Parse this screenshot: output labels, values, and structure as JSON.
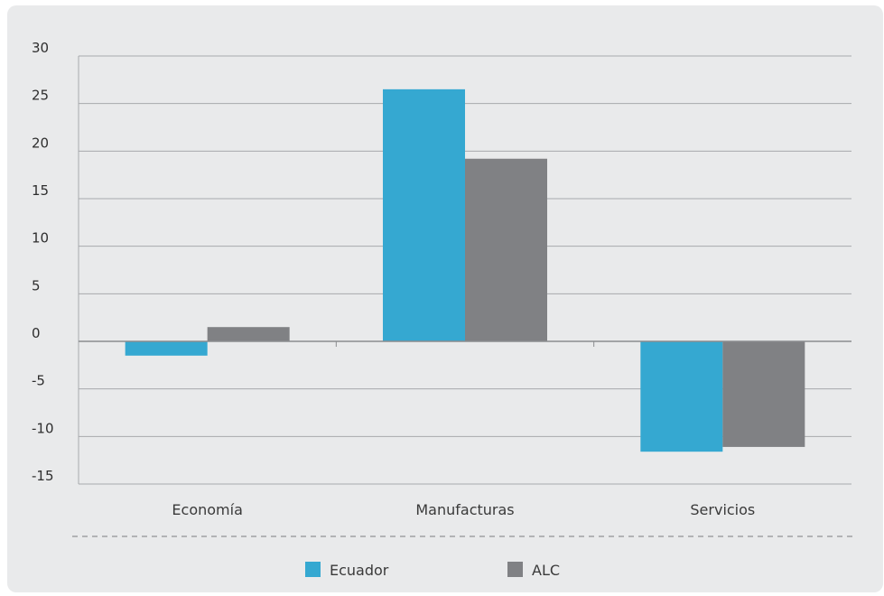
{
  "chart_data": {
    "type": "bar",
    "categories": [
      "Economía",
      "Manufacturas",
      "Servicios"
    ],
    "series": [
      {
        "name": "Ecuador",
        "color": "#35a8d1",
        "values": [
          -1.5,
          26.5,
          -11.6
        ]
      },
      {
        "name": "ALC",
        "color": "#808184",
        "values": [
          1.5,
          19.2,
          -11.1
        ]
      }
    ],
    "ylim": [
      -15,
      30
    ],
    "yticks": [
      30,
      25,
      20,
      15,
      10,
      5,
      0,
      -5,
      -10,
      -15
    ],
    "ytick_labels": [
      "30",
      "25",
      "20",
      "15",
      "10",
      "5",
      "0",
      "-5",
      "-10",
      "-15"
    ],
    "grid": true,
    "legend_position": "bottom"
  }
}
